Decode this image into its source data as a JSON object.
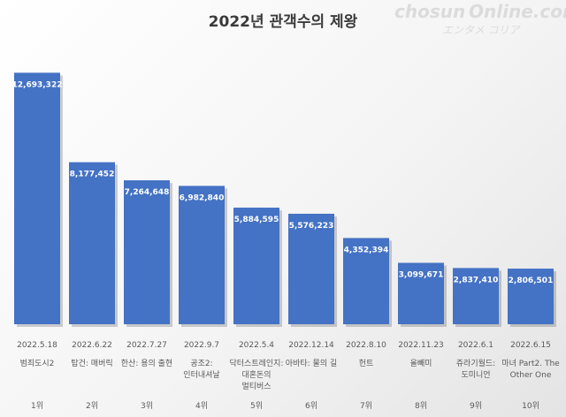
{
  "watermark": {
    "brand": "chosun",
    "domain": "Online.com",
    "sub": "エンタメ コリア"
  },
  "colors": {
    "bar": "#4472c4",
    "bar_dark": "#2f55a0",
    "text": "#595959"
  },
  "chart_data": {
    "type": "bar",
    "title": "2022년 관객수의 제왕",
    "categories": [
      "범죄도시2",
      "탑건: 매버릭",
      "한산: 용의 출현",
      "공조2: 인터내셔날",
      "닥터 스트레인지: 대혼돈의 멀티버스",
      "아바타: 물의 길",
      "헌트",
      "올빼미",
      "쥬라기월드: 도미니언",
      "마녀 Part2. The Other One"
    ],
    "category_lines": [
      [
        "범죄도시2"
      ],
      [
        "탑건: 매버릭"
      ],
      [
        "한산: 용의 출현"
      ],
      [
        "공조2:",
        "인터내셔날"
      ],
      [
        "닥터스트레인지:",
        "대혼돈의",
        "멀티버스"
      ],
      [
        "아바타: 물의 길"
      ],
      [
        "헌트"
      ],
      [
        "올빼미"
      ],
      [
        "쥬라기월드:",
        "도미니언"
      ],
      [
        "마녀 Part2. The",
        "Other One"
      ]
    ],
    "dates": [
      "2022.5.18",
      "2022.6.22",
      "2022.7.27",
      "2022.9.7",
      "2022.5.4",
      "2022.12.14",
      "2022.8.10",
      "2022.11.23",
      "2022.6.1",
      "2022.6.15"
    ],
    "ranks": [
      "1위",
      "2위",
      "3위",
      "4위",
      "5위",
      "6위",
      "7위",
      "8위",
      "9위",
      "10위"
    ],
    "values": [
      12693322,
      8177452,
      7264648,
      6982840,
      5884595,
      5576223,
      4352394,
      3099671,
      2837410,
      2806501
    ],
    "value_labels": [
      "12,693,322",
      "8,177,452",
      "7,264,648",
      "6,982,840",
      "5,884,595",
      "5,576,223",
      "4,352,394",
      "3,099,671",
      "2,837,410",
      "2,806,501"
    ],
    "ylim": [
      0,
      13600000
    ],
    "grid": false,
    "legend": "none"
  }
}
